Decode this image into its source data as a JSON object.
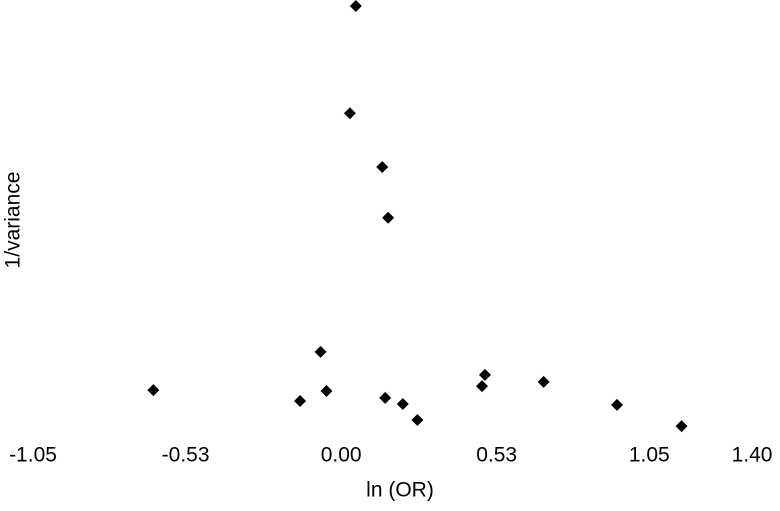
{
  "chart_data": {
    "type": "scatter",
    "x_label": "ln (OR)",
    "y_label": "1/variance",
    "x": [
      0.05,
      0.03,
      0.14,
      0.16,
      -0.07,
      -0.64,
      -0.14,
      -0.05,
      0.15,
      0.21,
      0.26,
      0.48,
      0.49,
      0.69,
      0.94,
      1.16
    ],
    "values": [
      100,
      75.3,
      62.9,
      51.2,
      20.3,
      11.5,
      9.0,
      11.3,
      9.7,
      8.3,
      4.6,
      12.4,
      15.0,
      13.4,
      8.1,
      3.2
    ],
    "color": "#000000",
    "xlim": [
      -1.05,
      1.4
    ],
    "xticks": [
      -1.05,
      -0.53,
      {
        "value": 0,
        "label": "0.00"
      },
      0.53,
      1.05,
      {
        "value": 1.4,
        "label": "1.40"
      }
    ],
    "ylim": [
      0,
      100
    ],
    "grid": false
  }
}
